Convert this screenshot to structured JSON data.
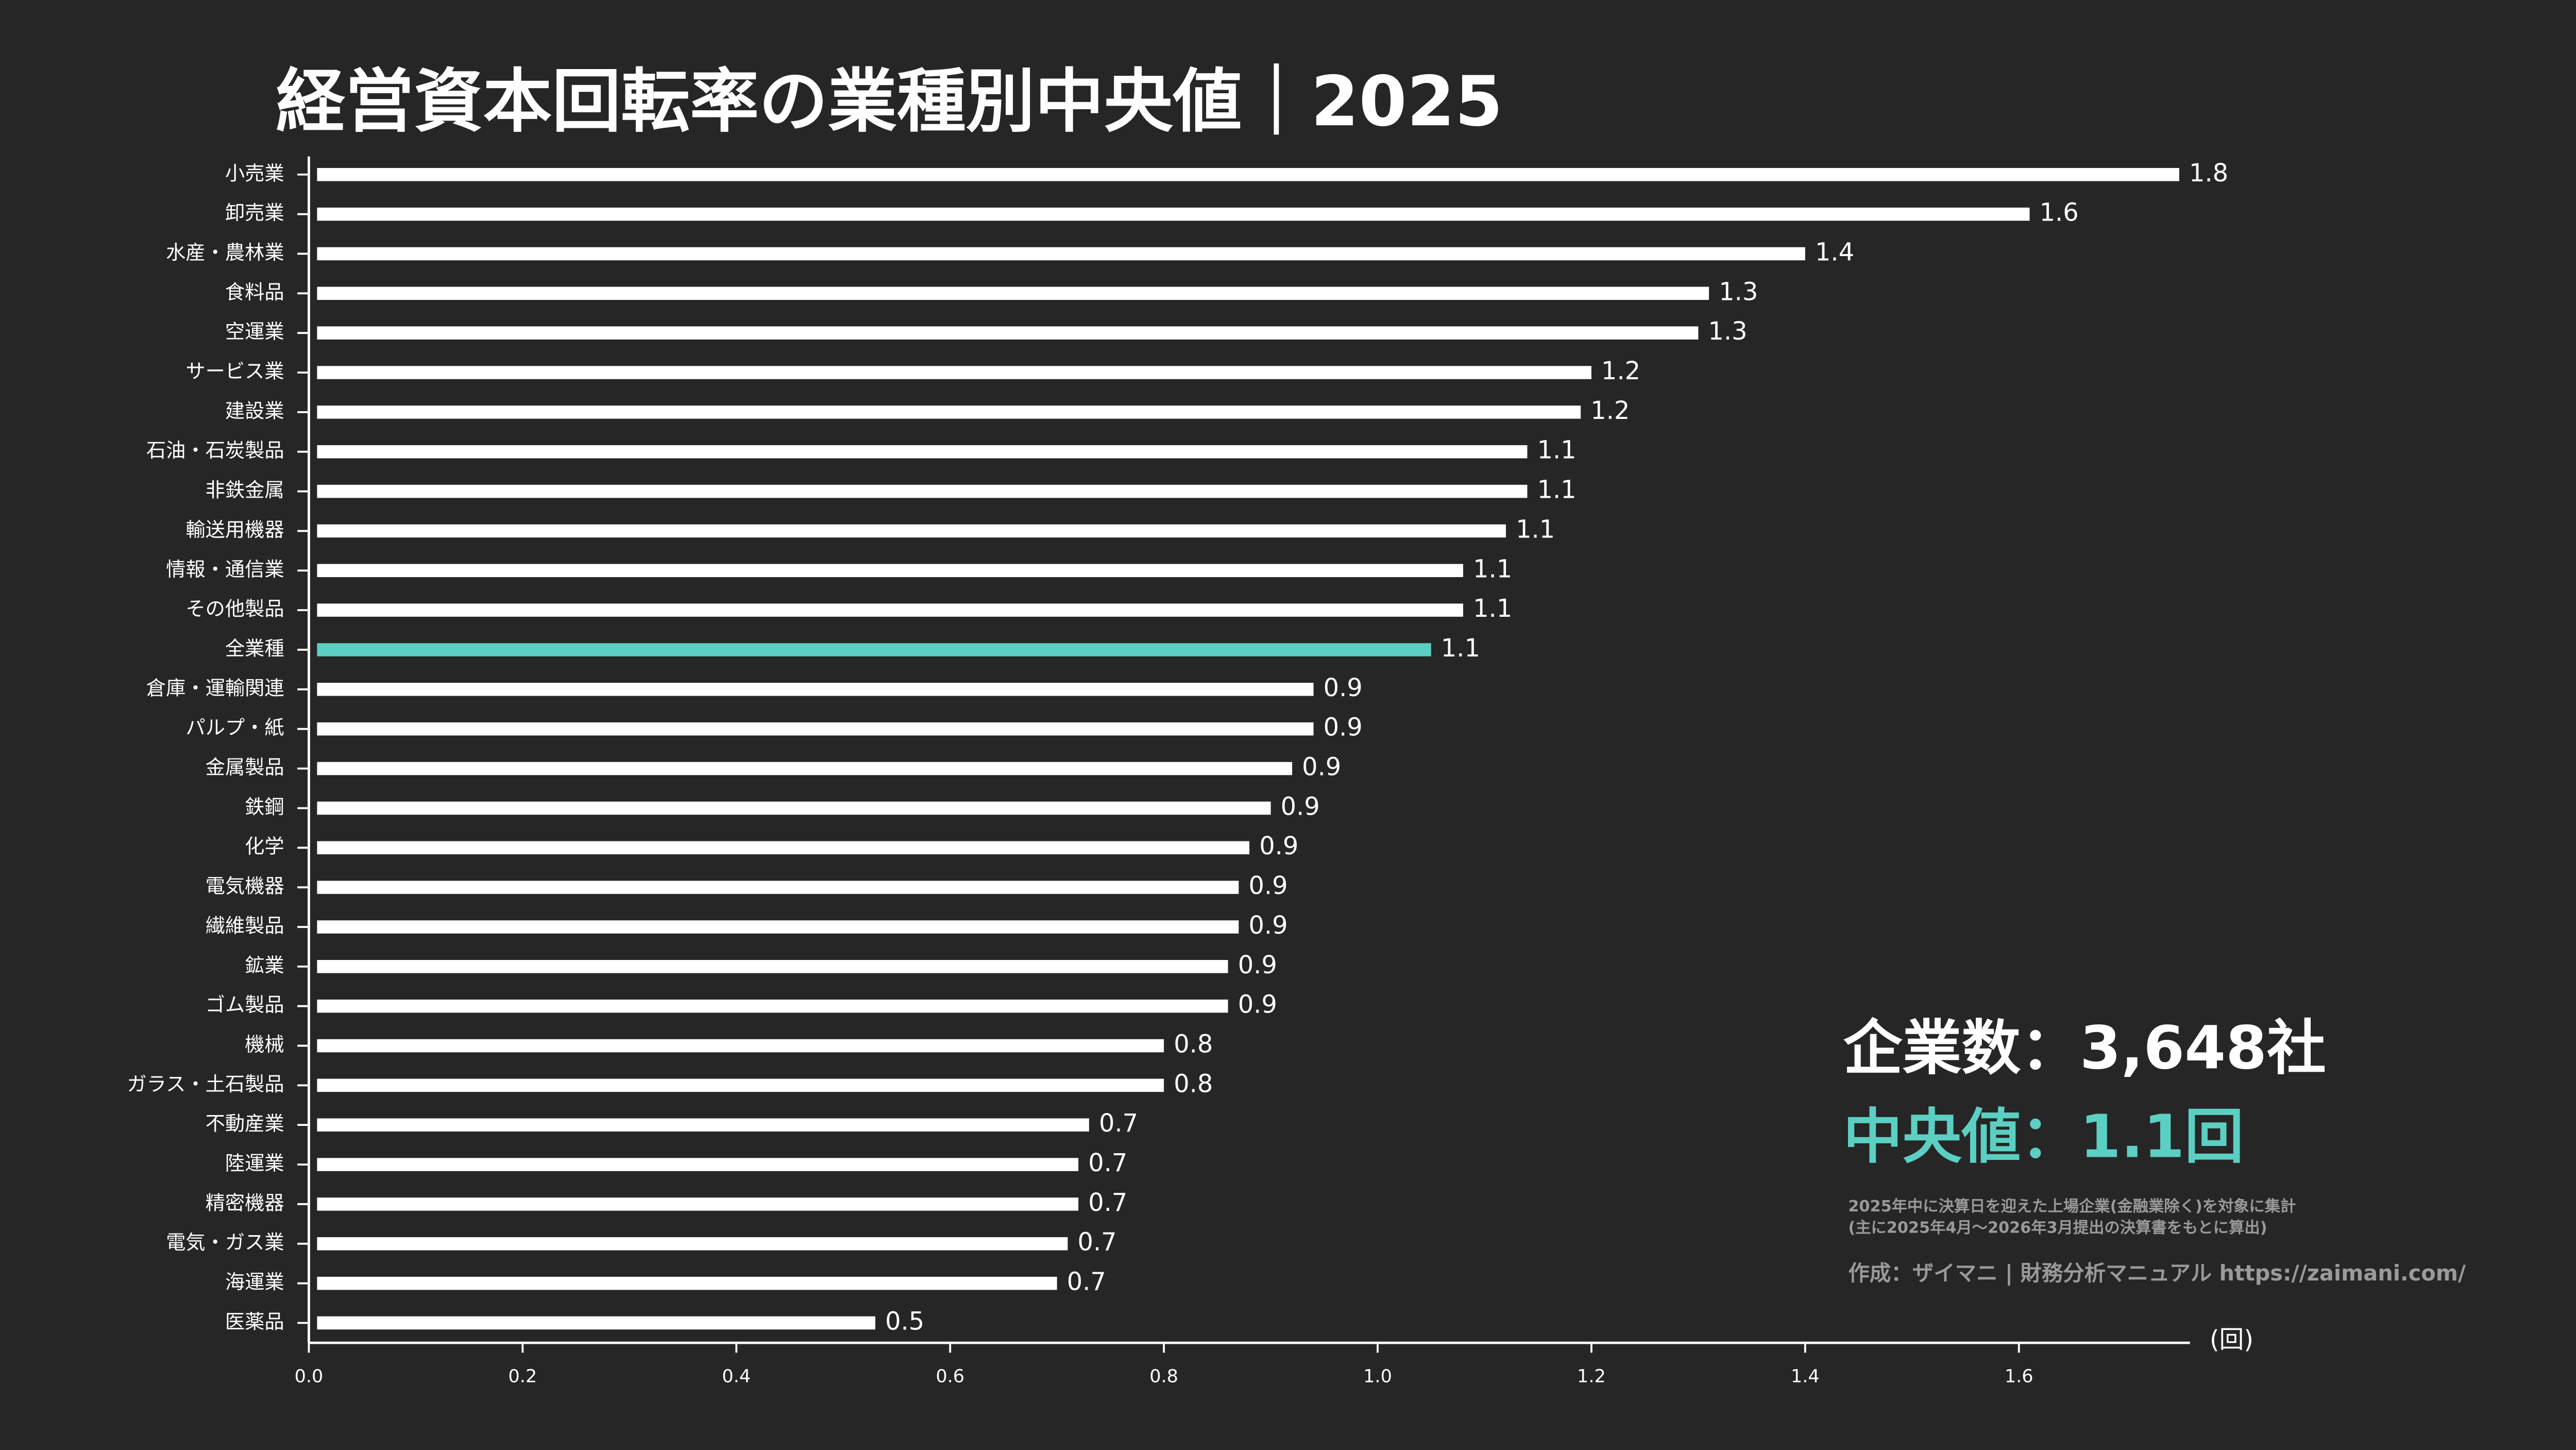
{
  "chart_data": {
    "type": "bar",
    "orientation": "horizontal",
    "title": "経営資本回転率の業種別中央値｜2025",
    "unit_label": "(回)",
    "xlim": [
      0,
      1.76
    ],
    "xticks": [
      0.0,
      0.2,
      0.4,
      0.6,
      0.8,
      1.0,
      1.2,
      1.4,
      1.6
    ],
    "xtick_labels": [
      "0.0",
      "0.2",
      "0.4",
      "0.6",
      "0.8",
      "1.0",
      "1.2",
      "1.4",
      "1.6"
    ],
    "grid": false,
    "bar_color": "#ffffff",
    "highlight_color": "#5ccfc3",
    "highlight_category": "全業種",
    "categories": [
      "小売業",
      "卸売業",
      "水産・農林業",
      "食料品",
      "空運業",
      "サービス業",
      "建設業",
      "石油・石炭製品",
      "非鉄金属",
      "輸送用機器",
      "情報・通信業",
      "その他製品",
      "全業種",
      "倉庫・運輸関連",
      "パルプ・紙",
      "金属製品",
      "鉄鋼",
      "化学",
      "電気機器",
      "繊維製品",
      "鉱業",
      "ゴム製品",
      "機械",
      "ガラス・土石製品",
      "不動産業",
      "陸運業",
      "精密機器",
      "電気・ガス業",
      "海運業",
      "医薬品"
    ],
    "values": [
      1.75,
      1.61,
      1.4,
      1.31,
      1.3,
      1.2,
      1.19,
      1.14,
      1.14,
      1.12,
      1.08,
      1.08,
      1.05,
      0.94,
      0.94,
      0.92,
      0.9,
      0.88,
      0.87,
      0.87,
      0.86,
      0.86,
      0.8,
      0.8,
      0.73,
      0.72,
      0.72,
      0.71,
      0.7,
      0.53
    ],
    "data_labels": [
      "1.8",
      "1.6",
      "1.4",
      "1.3",
      "1.3",
      "1.2",
      "1.2",
      "1.1",
      "1.1",
      "1.1",
      "1.1",
      "1.1",
      "1.1",
      "0.9",
      "0.9",
      "0.9",
      "0.9",
      "0.9",
      "0.9",
      "0.9",
      "0.9",
      "0.9",
      "0.8",
      "0.8",
      "0.7",
      "0.7",
      "0.7",
      "0.7",
      "0.7",
      "0.5"
    ]
  },
  "annotations": {
    "companies": "企業数：3,648社",
    "median": "中央値：1.1回",
    "note_line1": "2025年中に決算日を迎えた上場企業(金融業除く)を対象に集計",
    "note_line2": "(主に2025年4月～2026年3月提出の決算書をもとに算出)",
    "credit": "作成：ザイマニ | 財務分析マニュアル https://zaimani.com/"
  }
}
